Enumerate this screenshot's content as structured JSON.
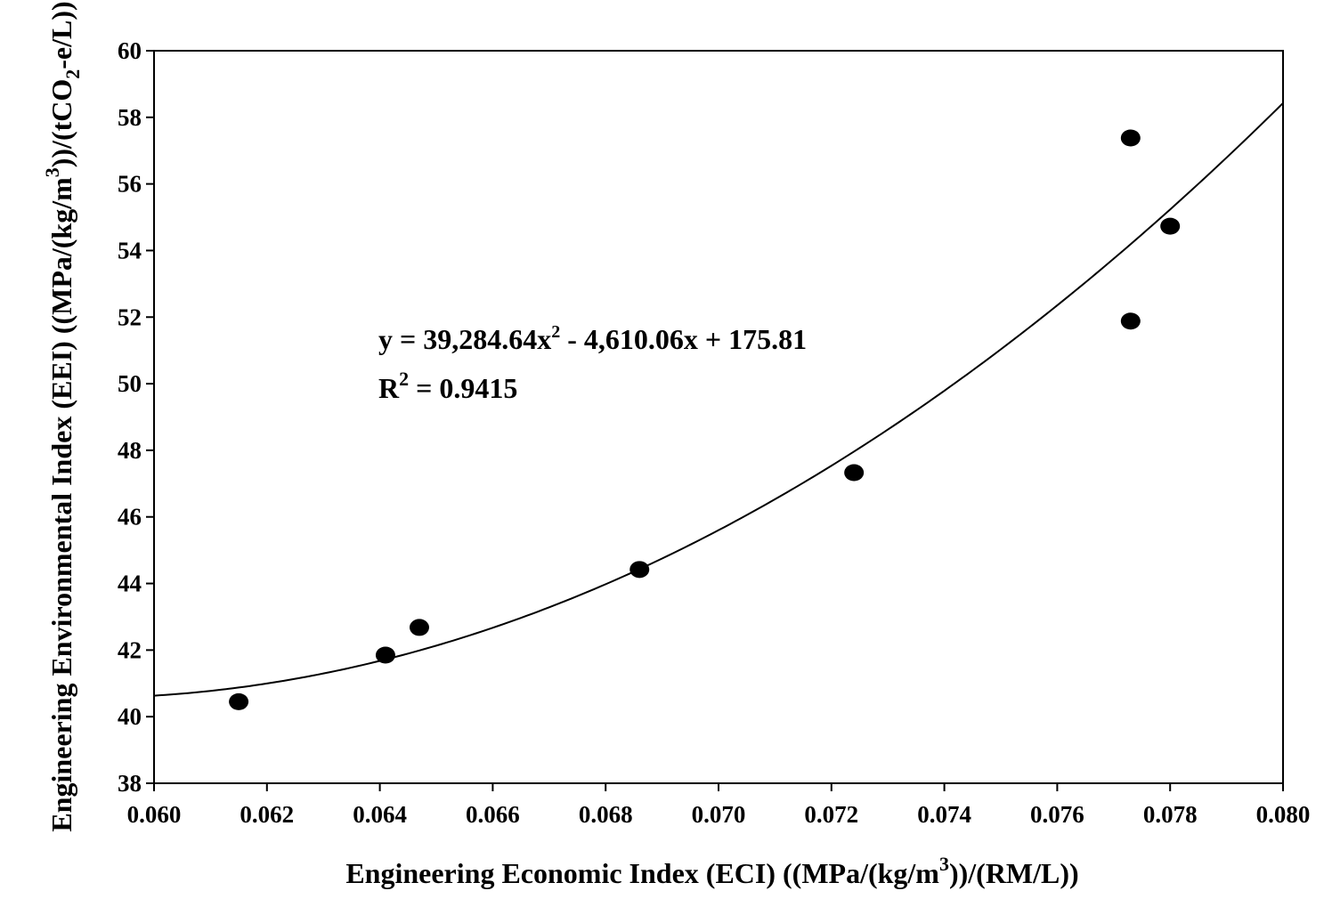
{
  "chart_data": {
    "type": "scatter",
    "title": "",
    "xlabel": "Engineering Economic Index (ECI) ((MPa/(kg/m3))/(RM/L))",
    "ylabel": "Engineering Environmental Index (EEI) ((MPa/(kg/m3))/(tCO2-e/L))",
    "xlabel_parts": {
      "pre": "Engineering Economic Index (ECI) ((MPa/(kg/m",
      "sup": "3",
      "post": "))/(RM/L))"
    },
    "ylabel_parts": {
      "pre": "Engineering Environmental Index (EEI) ((MPa/(kg/m",
      "sup": "3",
      "mid": "))/(tCO",
      "sub": "2",
      "post": "-e/L))"
    },
    "xlim": [
      0.06,
      0.08
    ],
    "ylim": [
      38,
      60
    ],
    "x_ticks": [
      "0.060",
      "0.062",
      "0.064",
      "0.066",
      "0.068",
      "0.070",
      "0.072",
      "0.074",
      "0.076",
      "0.078",
      "0.080"
    ],
    "y_ticks": [
      "38",
      "40",
      "42",
      "44",
      "46",
      "48",
      "50",
      "52",
      "54",
      "56",
      "58",
      "60"
    ],
    "grid": false,
    "points": [
      {
        "x": 0.0615,
        "y": 40.45
      },
      {
        "x": 0.0641,
        "y": 41.85
      },
      {
        "x": 0.0647,
        "y": 42.68
      },
      {
        "x": 0.0686,
        "y": 44.42
      },
      {
        "x": 0.0724,
        "y": 47.33
      },
      {
        "x": 0.0773,
        "y": 51.88
      },
      {
        "x": 0.0773,
        "y": 57.38
      },
      {
        "x": 0.078,
        "y": 54.73
      }
    ],
    "trendline": {
      "type": "polynomial",
      "coefficients": [
        39284.64,
        -4610.06,
        175.81
      ]
    },
    "annotations": {
      "equation_parts": {
        "pre": "y = 39,284.64x",
        "sup": "2",
        "post": " - 4,610.06x + 175.81"
      },
      "r2_parts": {
        "pre": "R",
        "sup": "2",
        "post": " = 0.9415"
      }
    }
  }
}
